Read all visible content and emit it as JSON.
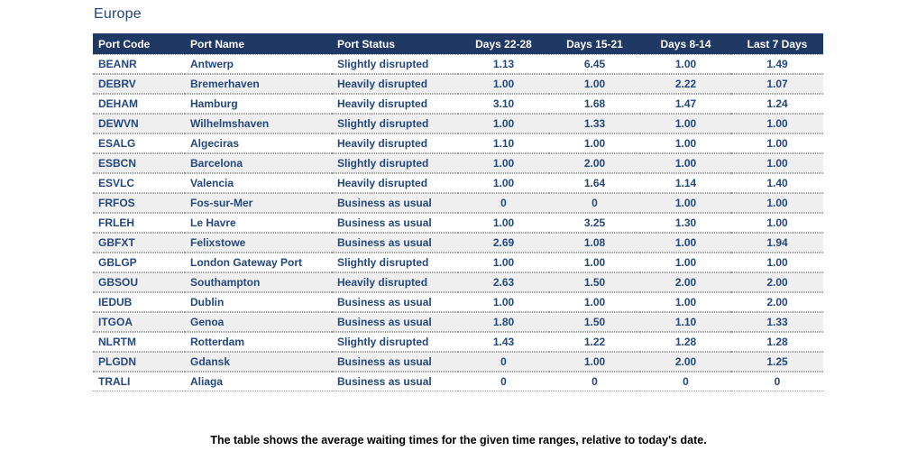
{
  "title": "Europe",
  "colors": {
    "header_bg": "#1f3864",
    "header_text": "#ffffff",
    "cell_text": "#24477e",
    "row_alt_bg": "#efefef",
    "divider": "#9b9b9b",
    "footer_text": "#000000"
  },
  "table": {
    "columns": [
      {
        "label": "Port Code",
        "align": "left"
      },
      {
        "label": "Port Name",
        "align": "left"
      },
      {
        "label": "Port Status",
        "align": "left"
      },
      {
        "label": "Days 22-28",
        "align": "center"
      },
      {
        "label": "Days 15-21",
        "align": "center"
      },
      {
        "label": "Days 8-14",
        "align": "center"
      },
      {
        "label": "Last 7 Days",
        "align": "center"
      }
    ],
    "rows": [
      [
        "BEANR",
        "Antwerp",
        "Slightly disrupted",
        "1.13",
        "6.45",
        "1.00",
        "1.49"
      ],
      [
        "DEBRV",
        "Bremerhaven",
        "Heavily disrupted",
        "1.00",
        "1.00",
        "2.22",
        "1.07"
      ],
      [
        "DEHAM",
        "Hamburg",
        "Heavily disrupted",
        "3.10",
        "1.68",
        "1.47",
        "1.24"
      ],
      [
        "DEWVN",
        "Wilhelmshaven",
        "Slightly disrupted",
        "1.00",
        "1.33",
        "1.00",
        "1.00"
      ],
      [
        "ESALG",
        "Algeciras",
        "Heavily disrupted",
        "1.10",
        "1.00",
        "1.00",
        "1.00"
      ],
      [
        "ESBCN",
        "Barcelona",
        "Slightly disrupted",
        "1.00",
        "2.00",
        "1.00",
        "1.00"
      ],
      [
        "ESVLC",
        "Valencia",
        "Heavily disrupted",
        "1.00",
        "1.64",
        "1.14",
        "1.40"
      ],
      [
        "FRFOS",
        "Fos-sur-Mer",
        "Business as usual",
        "0",
        "0",
        "1.00",
        "1.00"
      ],
      [
        "FRLEH",
        "Le Havre",
        "Business as usual",
        "1.00",
        "3.25",
        "1.30",
        "1.00"
      ],
      [
        "GBFXT",
        "Felixstowe",
        "Business as usual",
        "2.69",
        "1.08",
        "1.00",
        "1.94"
      ],
      [
        "GBLGP",
        "London Gateway Port",
        "Slightly disrupted",
        "1.00",
        "1.00",
        "1.00",
        "1.00"
      ],
      [
        "GBSOU",
        "Southampton",
        "Heavily disrupted",
        "2.63",
        "1.50",
        "2.00",
        "2.00"
      ],
      [
        "IEDUB",
        "Dublin",
        "Business as usual",
        "1.00",
        "1.00",
        "1.00",
        "2.00"
      ],
      [
        "ITGOA",
        "Genoa",
        "Business as usual",
        "1.80",
        "1.50",
        "1.10",
        "1.33"
      ],
      [
        "NLRTM",
        "Rotterdam",
        "Slightly disrupted",
        "1.43",
        "1.22",
        "1.28",
        "1.28"
      ],
      [
        "PLGDN",
        "Gdansk",
        "Business as usual",
        "0",
        "1.00",
        "2.00",
        "1.25"
      ],
      [
        "TRALI",
        "Aliaga",
        "Business as usual",
        "0",
        "0",
        "0",
        "0"
      ]
    ]
  },
  "footer_note": "The table shows the average waiting times for the given time ranges, relative to today's date."
}
